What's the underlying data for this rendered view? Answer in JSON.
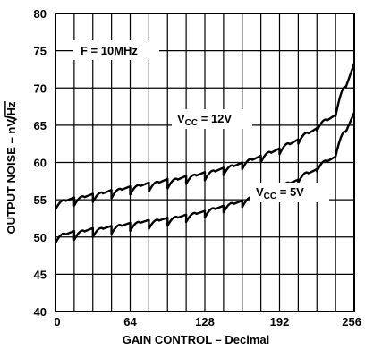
{
  "chart_data": {
    "type": "line",
    "title": "",
    "xlabel": "GAIN CONTROL – Decimal",
    "ylabel": "OUTPUT NOISE – nV/",
    "ylabel_unit": "Hz",
    "xlim": [
      0,
      256
    ],
    "ylim": [
      40,
      80
    ],
    "x_ticks": [
      0,
      64,
      128,
      192,
      256
    ],
    "y_ticks": [
      40,
      45,
      50,
      55,
      60,
      65,
      70,
      75,
      80
    ],
    "grid": true,
    "x_grid_step": 16,
    "annotation": "F = 10MHz",
    "series": [
      {
        "name": "VCC = 12V",
        "label_parts": [
          "V",
          "CC",
          " = 12V"
        ],
        "period": 16,
        "start": [
          53.7,
          54.2,
          54.7,
          55.2,
          55.7,
          56.1,
          56.5,
          57.1,
          57.6,
          58.3,
          59.1,
          60.0,
          61.1,
          62.5,
          64.2,
          66.2
        ],
        "end": [
          55.3,
          55.8,
          56.3,
          56.8,
          57.3,
          57.8,
          58.2,
          58.7,
          59.3,
          60.0,
          60.9,
          61.9,
          63.1,
          64.6,
          66.4,
          73.3
        ]
      },
      {
        "name": "VCC = 5V",
        "label_parts": [
          "V",
          "CC",
          " = 5V"
        ],
        "period": 16,
        "start": [
          49.2,
          49.6,
          50.0,
          50.4,
          50.8,
          51.1,
          51.5,
          52.0,
          52.6,
          53.3,
          54.0,
          55.0,
          56.0,
          57.3,
          58.8,
          60.8
        ],
        "end": [
          50.8,
          51.2,
          51.5,
          51.9,
          52.3,
          52.6,
          53.0,
          53.5,
          54.2,
          54.9,
          55.7,
          56.7,
          57.7,
          59.1,
          60.8,
          66.7
        ]
      }
    ]
  }
}
